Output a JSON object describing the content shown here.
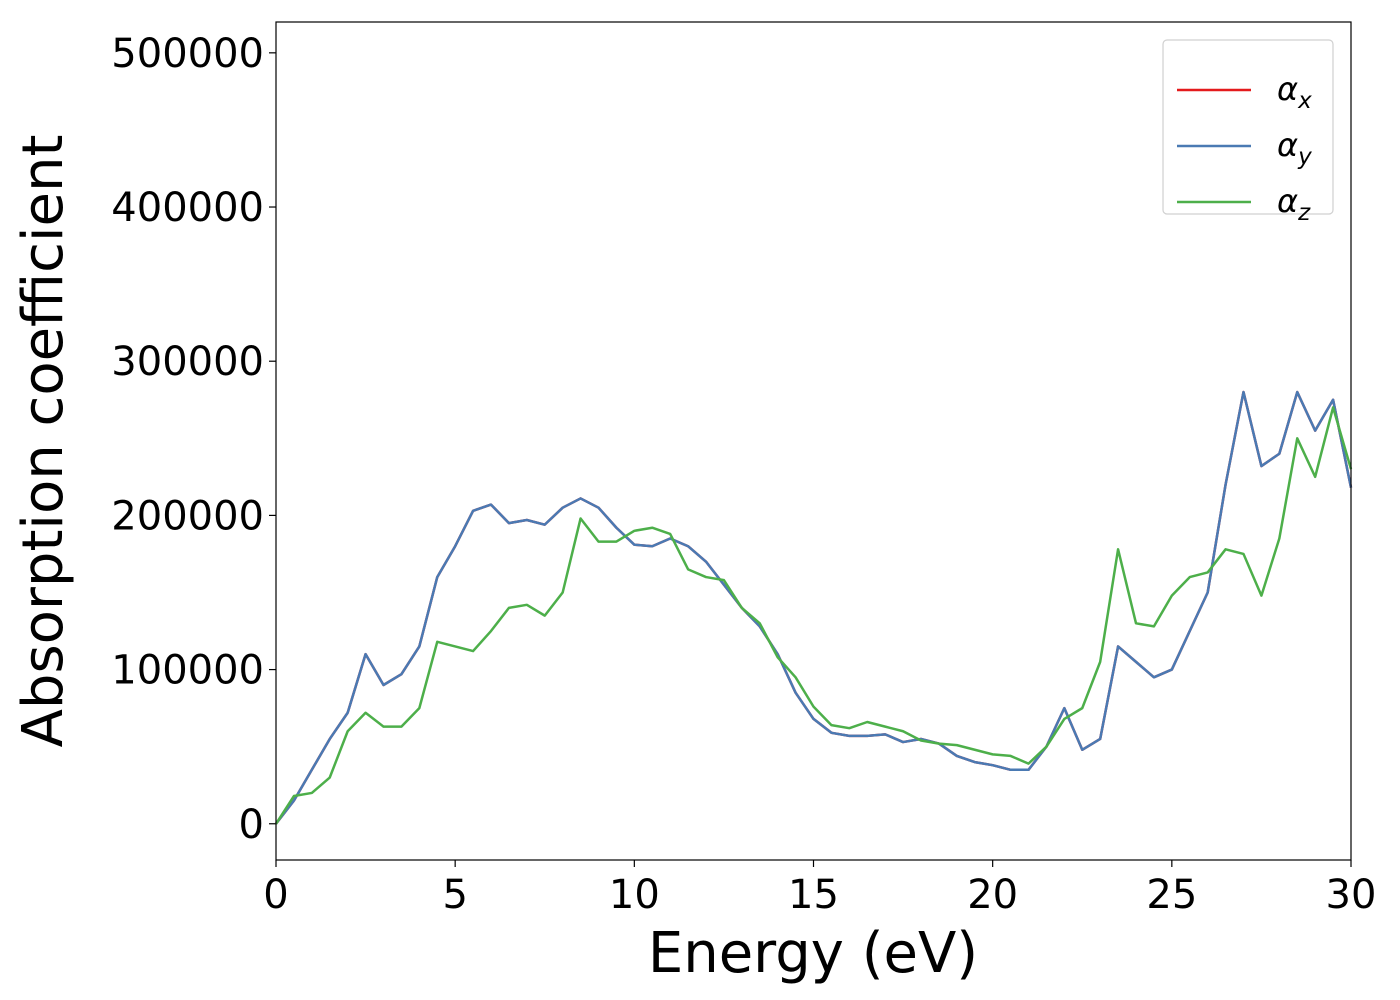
{
  "chart_data": {
    "type": "line",
    "xlabel": "Energy (eV)",
    "ylabel": "Absorption coefficient",
    "x": [
      0,
      0.5,
      1,
      1.5,
      2,
      2.5,
      3,
      3.5,
      4,
      4.5,
      5,
      5.5,
      6,
      6.5,
      7,
      7.5,
      8,
      8.5,
      9,
      9.5,
      10,
      10.5,
      11,
      11.5,
      12,
      12.5,
      13,
      13.5,
      14,
      14.5,
      15,
      15.5,
      16,
      16.5,
      17,
      17.5,
      18,
      18.5,
      19,
      19.5,
      20,
      20.5,
      21,
      21.5,
      22,
      22.5,
      23,
      23.5,
      24,
      24.5,
      25,
      25.5,
      26,
      26.5,
      27,
      27.5,
      28,
      28.5,
      29,
      29.5,
      30
    ],
    "series": [
      {
        "name": "αx",
        "color": "#e41a1c",
        "values": [
          0,
          15000,
          35000,
          55000,
          72000,
          110000,
          90000,
          97000,
          115000,
          160000,
          180000,
          203000,
          207000,
          195000,
          197000,
          194000,
          205000,
          211000,
          205000,
          192000,
          181000,
          180000,
          185000,
          180000,
          170000,
          155000,
          140000,
          128000,
          110000,
          85000,
          68000,
          59000,
          57000,
          57000,
          58000,
          53000,
          55000,
          52000,
          44000,
          40000,
          38000,
          35000,
          35000,
          50000,
          75000,
          48000,
          55000,
          115000,
          105000,
          95000,
          100000,
          125000,
          150000,
          220000,
          280000,
          232000,
          240000,
          280000,
          255000,
          275000,
          218000
        ]
      },
      {
        "name": "αy",
        "color": "#4a7ab3",
        "values": [
          0,
          15000,
          35000,
          55000,
          72000,
          110000,
          90000,
          97000,
          115000,
          160000,
          180000,
          203000,
          207000,
          195000,
          197000,
          194000,
          205000,
          211000,
          205000,
          192000,
          181000,
          180000,
          185000,
          180000,
          170000,
          155000,
          140000,
          128000,
          110000,
          85000,
          68000,
          59000,
          57000,
          57000,
          58000,
          53000,
          55000,
          52000,
          44000,
          40000,
          38000,
          35000,
          35000,
          50000,
          75000,
          48000,
          55000,
          115000,
          105000,
          95000,
          100000,
          125000,
          150000,
          220000,
          280000,
          232000,
          240000,
          280000,
          255000,
          275000,
          218000
        ]
      },
      {
        "name": "αz",
        "color": "#4daf4a",
        "values": [
          0,
          18000,
          20000,
          30000,
          60000,
          72000,
          63000,
          63000,
          75000,
          118000,
          115000,
          112000,
          125000,
          140000,
          142000,
          135000,
          150000,
          198000,
          183000,
          183000,
          190000,
          192000,
          188000,
          165000,
          160000,
          158000,
          140000,
          130000,
          108000,
          95000,
          76000,
          64000,
          62000,
          66000,
          63000,
          60000,
          54000,
          52000,
          51000,
          48000,
          45000,
          44000,
          39000,
          50000,
          68000,
          75000,
          105000,
          178000,
          130000,
          128000,
          148000,
          160000,
          163000,
          178000,
          175000,
          148000,
          185000,
          250000,
          225000,
          270000,
          230000
        ]
      }
    ],
    "xlim": [
      0,
      30
    ],
    "xticks": [
      0,
      5,
      10,
      15,
      20,
      25,
      30
    ],
    "ylim": [
      -23500,
      520000
    ],
    "yticks": [
      0,
      100000,
      200000,
      300000,
      400000,
      500000
    ],
    "legend": "upper right"
  }
}
